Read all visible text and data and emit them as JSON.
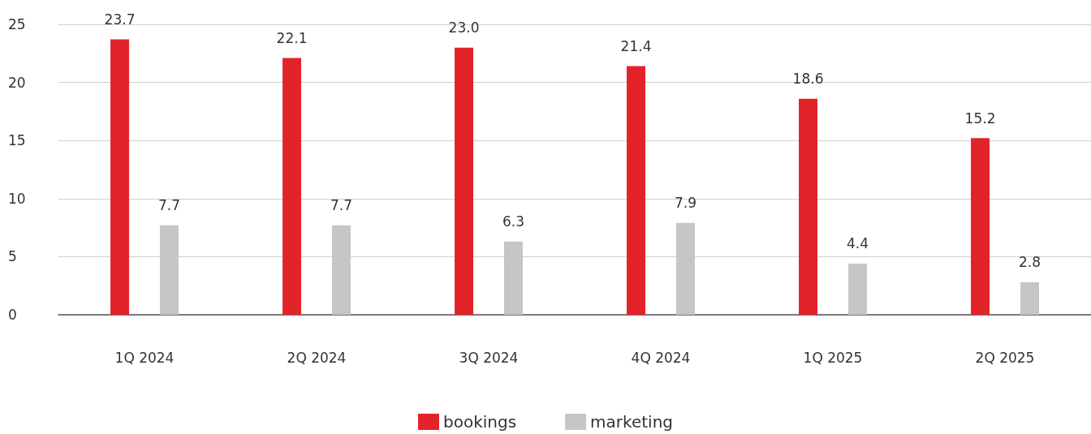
{
  "chart_data": {
    "type": "bar",
    "categories": [
      "1Q 2024",
      "2Q 2024",
      "3Q 2024",
      "4Q 2024",
      "1Q 2025",
      "2Q 2025"
    ],
    "series": [
      {
        "name": "bookings",
        "color": "#e3232a",
        "values": [
          23.7,
          22.1,
          23.0,
          21.4,
          18.6,
          15.2
        ],
        "value_labels": [
          "23.7",
          "22.1",
          "23.0",
          "21.4",
          "18.6",
          "15.2"
        ]
      },
      {
        "name": "marketing",
        "color": "#c6c6c5",
        "values": [
          7.7,
          7.7,
          6.3,
          7.9,
          4.4,
          2.8
        ],
        "value_labels": [
          "7.7",
          "7.7",
          "6.3",
          "7.9",
          "4.4",
          "2.8"
        ]
      }
    ],
    "ylim": [
      0,
      25
    ],
    "yticks": [
      0,
      5,
      10,
      15,
      20,
      25
    ],
    "grid": "y",
    "legend": "bottom"
  }
}
